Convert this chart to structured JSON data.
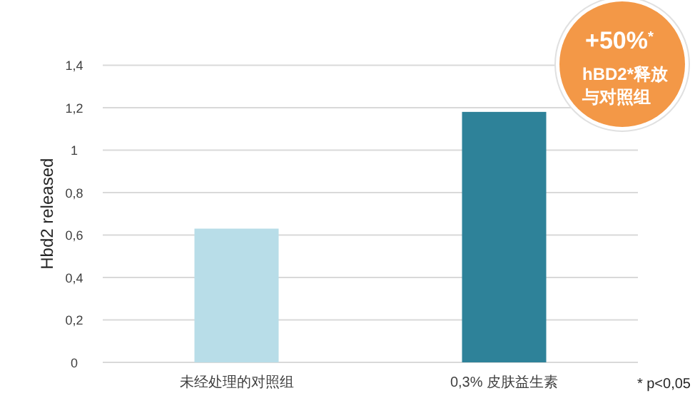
{
  "chart_data": {
    "type": "bar",
    "ylabel": "Hbd2 released",
    "categories": [
      "未经处理的对照组",
      "0,3% 皮肤益生素"
    ],
    "values": [
      0.63,
      1.18
    ],
    "colors": [
      "#b8dde8",
      "#2e8299"
    ],
    "ylim": [
      0,
      1.4
    ],
    "yticks": [
      0,
      {
        "value": 0.2,
        "label": "0,2"
      },
      {
        "value": 0.4,
        "label": "0,4"
      },
      {
        "value": 0.6,
        "label": "0,6"
      },
      {
        "value": 0.8,
        "label": "0,8"
      },
      1,
      {
        "value": 1.2,
        "label": "1,2"
      },
      {
        "value": 1.4,
        "label": "1,4"
      }
    ],
    "grid": "y",
    "annotations": [
      "+50%$^{*}$",
      "hBD2*释放与对照组",
      "* p<0,05"
    ]
  }
}
